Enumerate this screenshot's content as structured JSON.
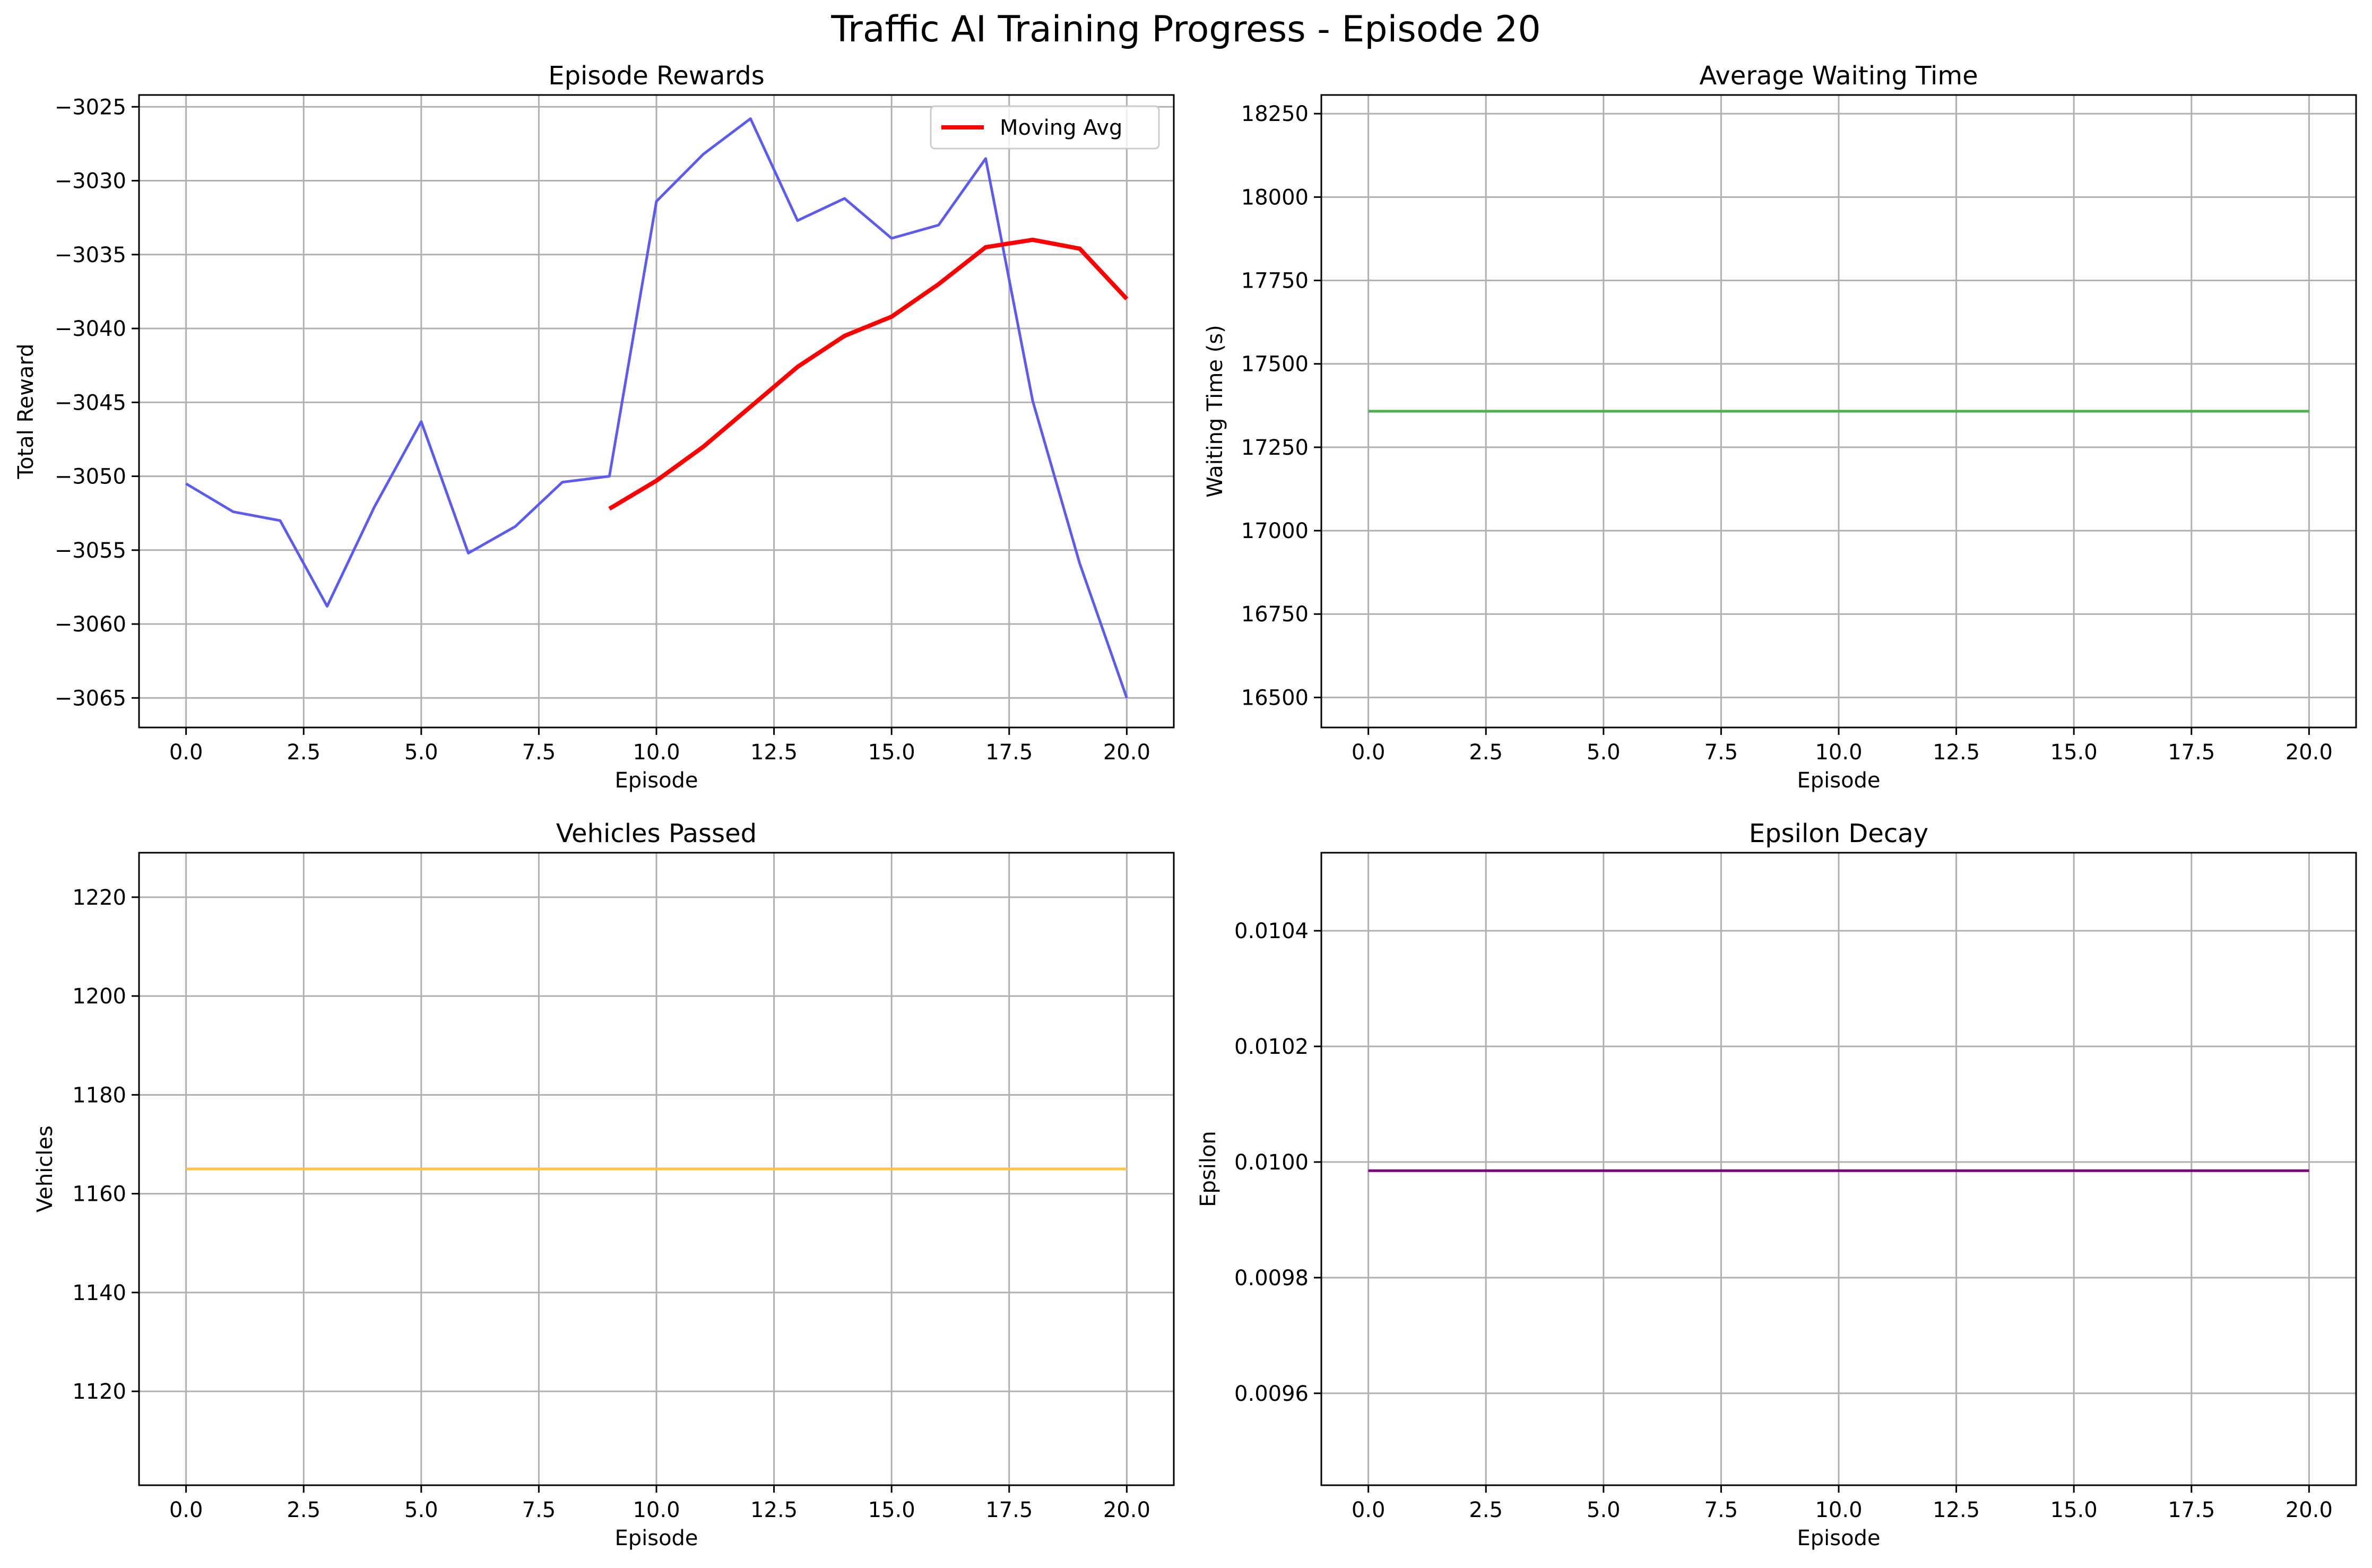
{
  "figure": {
    "title": "Traffic AI Training Progress - Episode 20"
  },
  "colors": {
    "rewards": "#5b5bef",
    "moving_avg": "#ff0000",
    "waiting": "#4caf50",
    "vehicles": "#ffc04d",
    "epsilon": "#800080",
    "grid": "#b0b0b0"
  },
  "chart_data": [
    {
      "type": "line",
      "title": "Episode Rewards",
      "xlabel": "Episode",
      "ylabel": "Total Reward",
      "xlim": [
        -1,
        21
      ],
      "ylim": [
        -3067,
        -3024.2
      ],
      "xticks": [
        0.0,
        2.5,
        5.0,
        7.5,
        10.0,
        12.5,
        15.0,
        17.5,
        20.0
      ],
      "xtick_labels": [
        "0.0",
        "2.5",
        "5.0",
        "7.5",
        "10.0",
        "12.5",
        "15.0",
        "17.5",
        "20.0"
      ],
      "yticks": [
        -3025,
        -3030,
        -3035,
        -3040,
        -3045,
        -3050,
        -3055,
        -3060,
        -3065
      ],
      "ytick_labels": [
        "−3025",
        "−3030",
        "−3035",
        "−3040",
        "−3045",
        "−3050",
        "−3055",
        "−3060",
        "−3065"
      ],
      "grid": true,
      "legend": "top-right",
      "series": [
        {
          "color": "rewards",
          "x": [
            0,
            1,
            2,
            3,
            4,
            5,
            6,
            7,
            8,
            9,
            10,
            11,
            12,
            13,
            14,
            15,
            16,
            17,
            18,
            19,
            20
          ],
          "y": [
            -3050.5,
            -3052.4,
            -3053.0,
            -3058.8,
            -3052.1,
            -3046.3,
            -3055.2,
            -3053.4,
            -3050.4,
            -3050.0,
            -3031.4,
            -3028.2,
            -3025.8,
            -3032.7,
            -3031.2,
            -3033.9,
            -3033.0,
            -3028.5,
            -3044.9,
            -3055.9,
            -3065.0
          ]
        },
        {
          "name": "Moving Avg",
          "color": "moving_avg",
          "x": [
            9,
            10,
            11,
            12,
            13,
            14,
            15,
            16,
            17,
            18,
            19,
            20
          ],
          "y": [
            -3052.2,
            -3050.3,
            -3048.0,
            -3045.3,
            -3042.6,
            -3040.5,
            -3039.2,
            -3037.0,
            -3034.5,
            -3034.0,
            -3034.6,
            -3038.0
          ]
        }
      ]
    },
    {
      "type": "line",
      "title": "Average Waiting Time",
      "xlabel": "Episode",
      "ylabel": "Waiting Time (s)",
      "xlim": [
        -1,
        21
      ],
      "ylim": [
        16410,
        18306
      ],
      "xticks": [
        0.0,
        2.5,
        5.0,
        7.5,
        10.0,
        12.5,
        15.0,
        17.5,
        20.0
      ],
      "xtick_labels": [
        "0.0",
        "2.5",
        "5.0",
        "7.5",
        "10.0",
        "12.5",
        "15.0",
        "17.5",
        "20.0"
      ],
      "yticks": [
        16500,
        16750,
        17000,
        17250,
        17500,
        17750,
        18000,
        18250
      ],
      "ytick_labels": [
        "16500",
        "16750",
        "17000",
        "17250",
        "17500",
        "17750",
        "18000",
        "18250"
      ],
      "grid": true,
      "series": [
        {
          "color": "waiting",
          "x": [
            0,
            20
          ],
          "y": [
            17358,
            17358
          ]
        }
      ]
    },
    {
      "type": "line",
      "title": "Vehicles Passed",
      "xlabel": "Episode",
      "ylabel": "Vehicles",
      "xlim": [
        -1,
        21
      ],
      "ylim": [
        1101,
        1229
      ],
      "xticks": [
        0.0,
        2.5,
        5.0,
        7.5,
        10.0,
        12.5,
        15.0,
        17.5,
        20.0
      ],
      "xtick_labels": [
        "0.0",
        "2.5",
        "5.0",
        "7.5",
        "10.0",
        "12.5",
        "15.0",
        "17.5",
        "20.0"
      ],
      "yticks": [
        1120,
        1140,
        1160,
        1180,
        1200,
        1220
      ],
      "ytick_labels": [
        "1120",
        "1140",
        "1160",
        "1180",
        "1200",
        "1220"
      ],
      "grid": true,
      "series": [
        {
          "color": "vehicles",
          "x": [
            0,
            20
          ],
          "y": [
            1165,
            1165
          ]
        }
      ]
    },
    {
      "type": "line",
      "title": "Epsilon Decay",
      "xlabel": "Episode",
      "ylabel": "Epsilon",
      "xlim": [
        -1,
        21
      ],
      "ylim": [
        0.009441,
        0.010535
      ],
      "xticks": [
        0.0,
        2.5,
        5.0,
        7.5,
        10.0,
        12.5,
        15.0,
        17.5,
        20.0
      ],
      "xtick_labels": [
        "0.0",
        "2.5",
        "5.0",
        "7.5",
        "10.0",
        "12.5",
        "15.0",
        "17.5",
        "20.0"
      ],
      "yticks": [
        0.0096,
        0.0098,
        0.01,
        0.0102,
        0.0104
      ],
      "ytick_labels": [
        "0.0096",
        "0.0098",
        "0.0100",
        "0.0102",
        "0.0104"
      ],
      "grid": true,
      "series": [
        {
          "color": "epsilon",
          "x": [
            0,
            20
          ],
          "y": [
            0.009985,
            0.009985
          ]
        }
      ]
    }
  ]
}
